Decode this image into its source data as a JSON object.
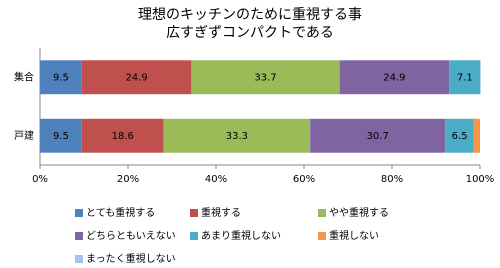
{
  "chart_data": {
    "type": "stacked-bar-horizontal",
    "title": [
      "理想のキッチンのために重視する事",
      "広すぎずコンパクトである"
    ],
    "categories": [
      "集合",
      "戸建"
    ],
    "series": [
      {
        "name": "とても重視する",
        "color": "#4f81bd",
        "values": [
          9.5,
          9.5
        ]
      },
      {
        "name": "重視する",
        "color": "#c0504d",
        "values": [
          24.9,
          18.6
        ]
      },
      {
        "name": "やや重視する",
        "color": "#9bbb59",
        "values": [
          33.7,
          33.3
        ]
      },
      {
        "name": "どちらともいえない",
        "color": "#8064a2",
        "values": [
          24.9,
          30.7
        ]
      },
      {
        "name": "あまり重視しない",
        "color": "#4bacc6",
        "values": [
          7.1,
          6.5
        ]
      },
      {
        "name": "重視しない",
        "color": "#f79646",
        "values": [
          0,
          1.4
        ]
      },
      {
        "name": "まったく重視しない",
        "color": "#a6c4e8",
        "values": [
          0,
          0
        ]
      }
    ],
    "xlim": [
      0,
      100
    ],
    "xticks": [
      {
        "value": 0,
        "label": "0%"
      },
      {
        "value": 20,
        "label": "20%"
      },
      {
        "value": 40,
        "label": "40%"
      },
      {
        "value": 60,
        "label": "60%"
      },
      {
        "value": 80,
        "label": "80%"
      },
      {
        "value": 100,
        "label": "100%"
      }
    ],
    "legend": "bottom"
  }
}
